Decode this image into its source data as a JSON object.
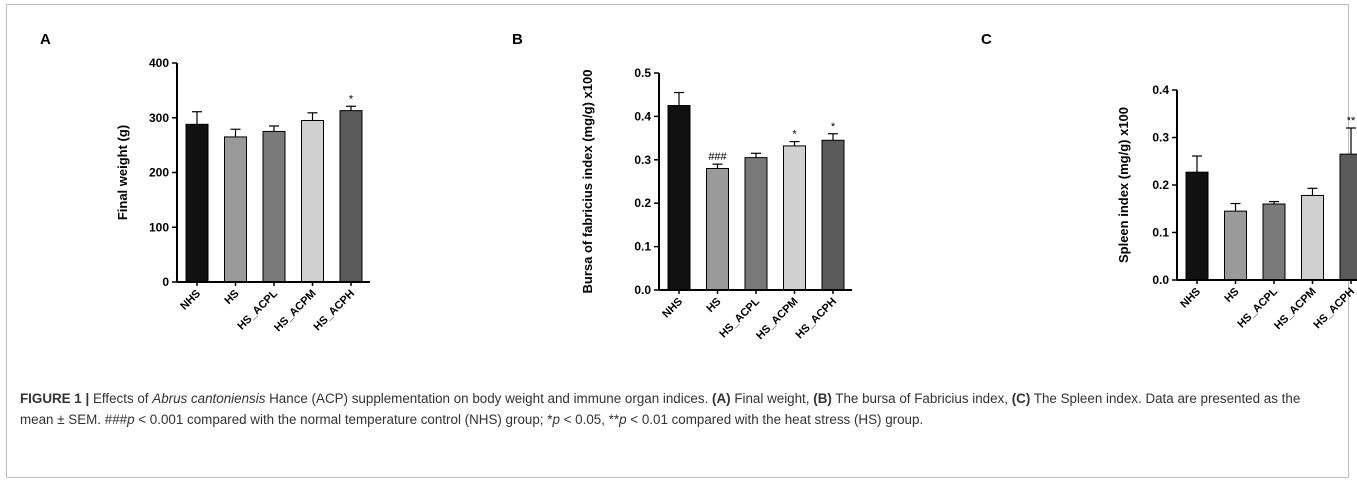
{
  "chart_data": [
    {
      "panel_letter": "A",
      "type": "bar",
      "ylabel": "Final weight (g)",
      "ylim": [
        0,
        400
      ],
      "yticks": [
        "0",
        "100",
        "200",
        "300",
        "400"
      ],
      "categories": [
        "NHS",
        "HS",
        "HS_ACPL",
        "HS_ACPM",
        "HS_ACPH"
      ],
      "values": [
        288,
        265,
        275,
        295,
        313
      ],
      "errors": [
        23,
        14,
        10,
        14,
        8
      ],
      "annotations": [
        "",
        "",
        "",
        "",
        "*"
      ],
      "colors": [
        "#111111",
        "#9a9a9a",
        "#7a7a7a",
        "#d0d0d0",
        "#5a5a5a"
      ]
    },
    {
      "panel_letter": "B",
      "type": "bar",
      "ylabel": "Bursa of fabricius index (mg/g)  x100",
      "ylim": [
        0,
        0.5
      ],
      "yticks": [
        "0.0",
        "0.1",
        "0.2",
        "0.3",
        "0.4",
        "0.5"
      ],
      "categories": [
        "NHS",
        "HS",
        "HS_ACPL",
        "HS_ACPM",
        "HS_ACPH"
      ],
      "values": [
        0.425,
        0.28,
        0.305,
        0.332,
        0.345
      ],
      "errors": [
        0.03,
        0.01,
        0.01,
        0.01,
        0.015
      ],
      "annotations": [
        "",
        "###",
        "",
        "*",
        "*"
      ],
      "colors": [
        "#111111",
        "#9a9a9a",
        "#7a7a7a",
        "#d0d0d0",
        "#5a5a5a"
      ]
    },
    {
      "panel_letter": "C",
      "type": "bar",
      "ylabel": "Spleen index (mg/g) x100",
      "ylim": [
        0,
        0.4
      ],
      "yticks": [
        "0.0",
        "0.1",
        "0.2",
        "0.3",
        "0.4"
      ],
      "categories": [
        "NHS",
        "HS",
        "HS_ACPL",
        "HS_ACPM",
        "HS_ACPH"
      ],
      "values": [
        0.227,
        0.145,
        0.16,
        0.178,
        0.265
      ],
      "errors": [
        0.034,
        0.016,
        0.005,
        0.015,
        0.055
      ],
      "annotations": [
        "",
        "",
        "",
        "",
        "**"
      ],
      "colors": [
        "#111111",
        "#9a9a9a",
        "#7a7a7a",
        "#d0d0d0",
        "#5a5a5a"
      ]
    }
  ],
  "caption": {
    "figure_label": "FIGURE 1 |",
    "text_1": " Effects of ",
    "species": "Abrus cantoniensis",
    "text_2": " Hance (ACP) supplementation on body weight and immune organ indices. ",
    "ref_a": "(A)",
    "text_3": " Final weight, ",
    "ref_b": "(B)",
    "text_4": " The bursa of Fabricius index, ",
    "ref_c": "(C)",
    "text_5": " The Spleen index. Data are presented as the mean ± SEM. ###",
    "p1": "p",
    "text_6": " < 0.001 compared with the normal temperature control (NHS) group; *",
    "p2": "p",
    "text_7": " < 0.05, **",
    "p3": "p",
    "text_8": " < 0.01 compared with the heat stress (HS) group."
  }
}
